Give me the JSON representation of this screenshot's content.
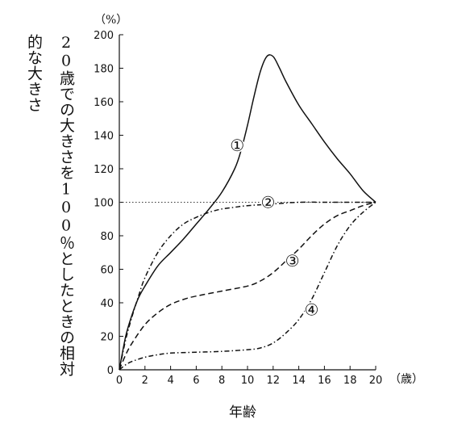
{
  "chart_data": {
    "type": "line",
    "ylabel": "20歳での大きさを100％としたときの相対的な大きさ",
    "xlabel": "年齢",
    "y_unit": "（%）",
    "x_unit": "（歳）",
    "xlim": [
      0,
      20
    ],
    "ylim": [
      0,
      200
    ],
    "x_ticks": [
      0,
      2,
      4,
      6,
      8,
      10,
      12,
      14,
      16,
      18,
      20
    ],
    "y_ticks": [
      0,
      20,
      40,
      60,
      80,
      100,
      120,
      140,
      160,
      180,
      200
    ],
    "reference_line": {
      "y": 100,
      "style": "dotted"
    },
    "series": [
      {
        "name": "①",
        "style": "solid",
        "label_at": [
          9.2,
          134
        ],
        "points": [
          [
            0,
            0
          ],
          [
            0.5,
            20
          ],
          [
            1,
            33
          ],
          [
            1.5,
            43
          ],
          [
            2,
            50
          ],
          [
            3,
            62
          ],
          [
            4,
            70
          ],
          [
            5,
            78
          ],
          [
            6,
            87
          ],
          [
            7,
            96
          ],
          [
            8,
            106
          ],
          [
            9,
            120
          ],
          [
            9.5,
            131
          ],
          [
            10,
            146
          ],
          [
            10.5,
            163
          ],
          [
            11,
            178
          ],
          [
            11.5,
            187
          ],
          [
            12,
            187
          ],
          [
            12.5,
            180
          ],
          [
            13,
            172
          ],
          [
            14,
            158
          ],
          [
            15,
            147
          ],
          [
            16,
            136
          ],
          [
            17,
            126
          ],
          [
            18,
            117
          ],
          [
            19,
            107
          ],
          [
            20,
            100
          ]
        ]
      },
      {
        "name": "②",
        "style": "dash-dot",
        "label_at": [
          11.6,
          100
        ],
        "points": [
          [
            0,
            0
          ],
          [
            0.5,
            18
          ],
          [
            1,
            32
          ],
          [
            1.5,
            44
          ],
          [
            2,
            55
          ],
          [
            3,
            70
          ],
          [
            4,
            80
          ],
          [
            5,
            87
          ],
          [
            6,
            91
          ],
          [
            7,
            94
          ],
          [
            8,
            96
          ],
          [
            9,
            97
          ],
          [
            10,
            98
          ],
          [
            12,
            99
          ],
          [
            14,
            100
          ],
          [
            16,
            100
          ],
          [
            18,
            100
          ],
          [
            20,
            100
          ]
        ]
      },
      {
        "name": "③",
        "style": "dashed",
        "label_at": [
          13.5,
          65
        ],
        "points": [
          [
            0,
            0
          ],
          [
            0.5,
            9
          ],
          [
            1,
            16
          ],
          [
            2,
            27
          ],
          [
            3,
            34
          ],
          [
            4,
            39
          ],
          [
            5,
            42
          ],
          [
            6,
            44
          ],
          [
            8,
            47
          ],
          [
            10,
            50
          ],
          [
            11,
            53
          ],
          [
            12,
            58
          ],
          [
            13,
            65
          ],
          [
            14,
            72
          ],
          [
            15,
            80
          ],
          [
            16,
            87
          ],
          [
            17,
            92
          ],
          [
            18,
            95
          ],
          [
            19,
            98
          ],
          [
            20,
            100
          ]
        ]
      },
      {
        "name": "④",
        "style": "dash-dot",
        "label_at": [
          15,
          36
        ],
        "points": [
          [
            0,
            0
          ],
          [
            0.5,
            3
          ],
          [
            1,
            5
          ],
          [
            2,
            7.5
          ],
          [
            3,
            9
          ],
          [
            4,
            10
          ],
          [
            6,
            10.5
          ],
          [
            8,
            11
          ],
          [
            10,
            12
          ],
          [
            11,
            13
          ],
          [
            12,
            16
          ],
          [
            13,
            22
          ],
          [
            14,
            30
          ],
          [
            15,
            42
          ],
          [
            16,
            58
          ],
          [
            17,
            74
          ],
          [
            18,
            86
          ],
          [
            19,
            94
          ],
          [
            20,
            100
          ]
        ]
      }
    ]
  }
}
